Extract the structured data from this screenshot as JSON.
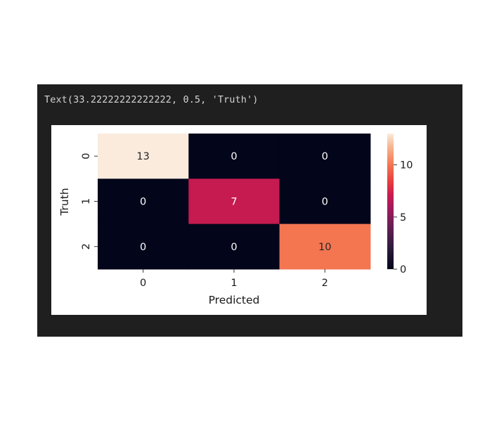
{
  "output": {
    "text": "Text(33.22222222222222, 0.5, 'Truth')"
  },
  "colors": {
    "cell_background": "#1f1f1f",
    "output_text": "#d4d4d4",
    "figure_background": "#ffffff"
  },
  "chart_data": {
    "type": "heatmap",
    "xlabel": "Predicted",
    "ylabel": "Truth",
    "x_tick_labels": [
      "0",
      "1",
      "2"
    ],
    "y_tick_labels": [
      "0",
      "1",
      "2"
    ],
    "matrix": [
      [
        13,
        0,
        0
      ],
      [
        0,
        7,
        0
      ],
      [
        0,
        0,
        10
      ]
    ],
    "annotate": true,
    "colormap": "rocket",
    "colorbar": {
      "vmin": 0,
      "vmax": 13,
      "ticks": [
        0,
        5,
        10
      ]
    }
  }
}
